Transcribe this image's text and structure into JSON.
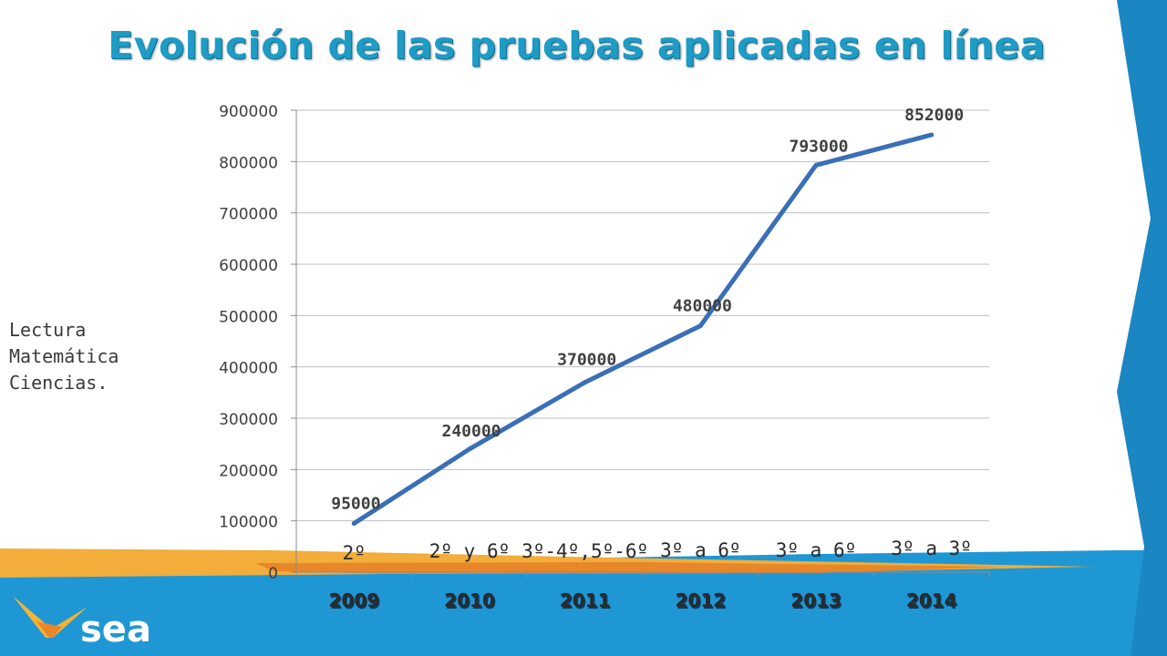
{
  "slide": {
    "title": "Evolución de las pruebas aplicadas en línea",
    "side_note": [
      "Lectura",
      "Matemática",
      "Ciencias."
    ],
    "logo_text": "sea"
  },
  "colors": {
    "title": "#1e9cc5",
    "line": "#3a6fb8",
    "footer_blue": "#1f97d4",
    "footer_orange": "#e8862a",
    "gridline": "#bfbfbf",
    "logo_chevron_yellow": "#f5b335"
  },
  "chart_data": {
    "type": "line",
    "categories": [
      "2009",
      "2010",
      "2011",
      "2012",
      "2013",
      "2014"
    ],
    "series": [
      {
        "values": [
          95000,
          240000,
          370000,
          480000,
          793000,
          852000
        ]
      }
    ],
    "data_labels": [
      "95000",
      "240000",
      "370000",
      "480000",
      "793000",
      "852000"
    ],
    "category_notes": [
      "2º",
      "2º y 6º",
      "3º-4º,5º-6º",
      "3º a 6º",
      "3º a 6º",
      "3º a 3º"
    ],
    "ylim": [
      0,
      900000
    ],
    "yticks": [
      0,
      100000,
      200000,
      300000,
      400000,
      500000,
      600000,
      700000,
      800000,
      900000
    ],
    "ytick_labels": [
      "0",
      "100000",
      "200000",
      "300000",
      "400000",
      "500000",
      "600000",
      "700000",
      "800000",
      "900000"
    ],
    "grid": true,
    "legend": "none",
    "title": "",
    "xlabel": "",
    "ylabel": ""
  }
}
